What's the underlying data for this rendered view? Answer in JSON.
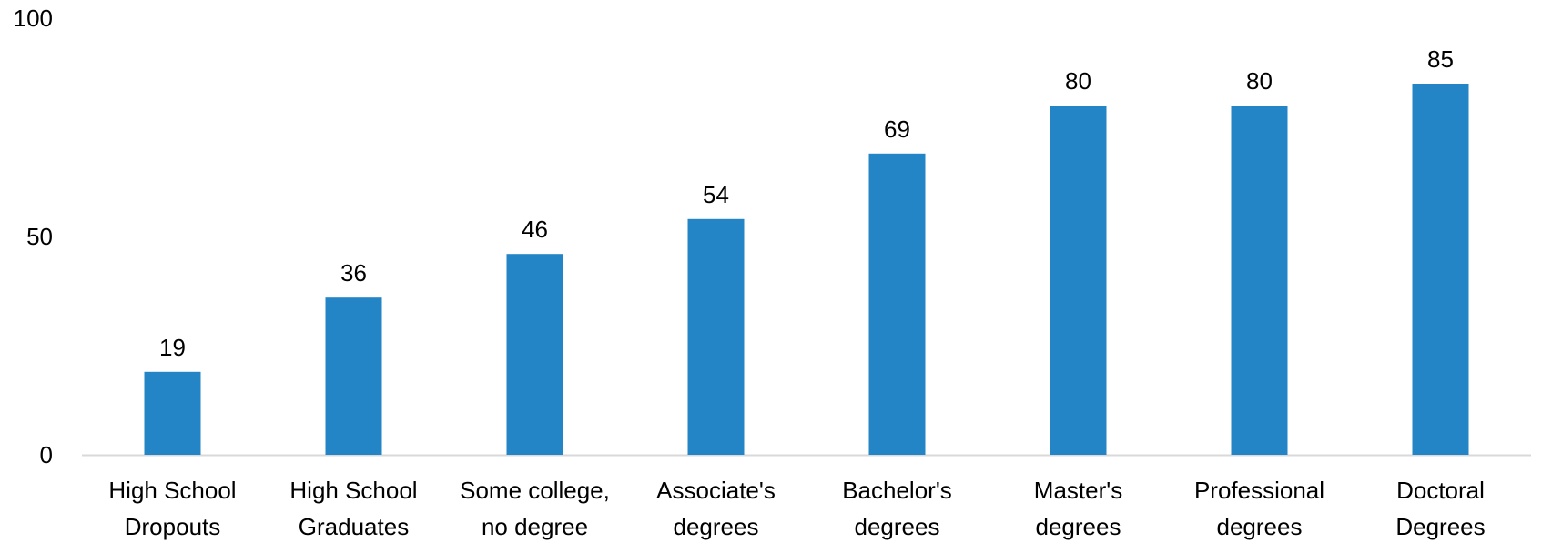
{
  "chart_data": {
    "type": "bar",
    "title": "",
    "xlabel": "",
    "ylabel": "",
    "ylim": [
      0,
      100
    ],
    "yticks": [
      0,
      50,
      100
    ],
    "grid": false,
    "legend": "none",
    "bar_color": "#2385C6",
    "axis_color": "#D9D9D9",
    "categories": [
      [
        "High School",
        "Dropouts"
      ],
      [
        "High School",
        "Graduates"
      ],
      [
        "Some college,",
        "no degree"
      ],
      [
        "Associate's",
        "degrees"
      ],
      [
        "Bachelor's",
        "degrees"
      ],
      [
        "Master's",
        "degrees"
      ],
      [
        "Professional",
        "degrees"
      ],
      [
        "Doctoral",
        "Degrees"
      ]
    ],
    "values": [
      19,
      36,
      46,
      54,
      69,
      80,
      80,
      85
    ]
  }
}
